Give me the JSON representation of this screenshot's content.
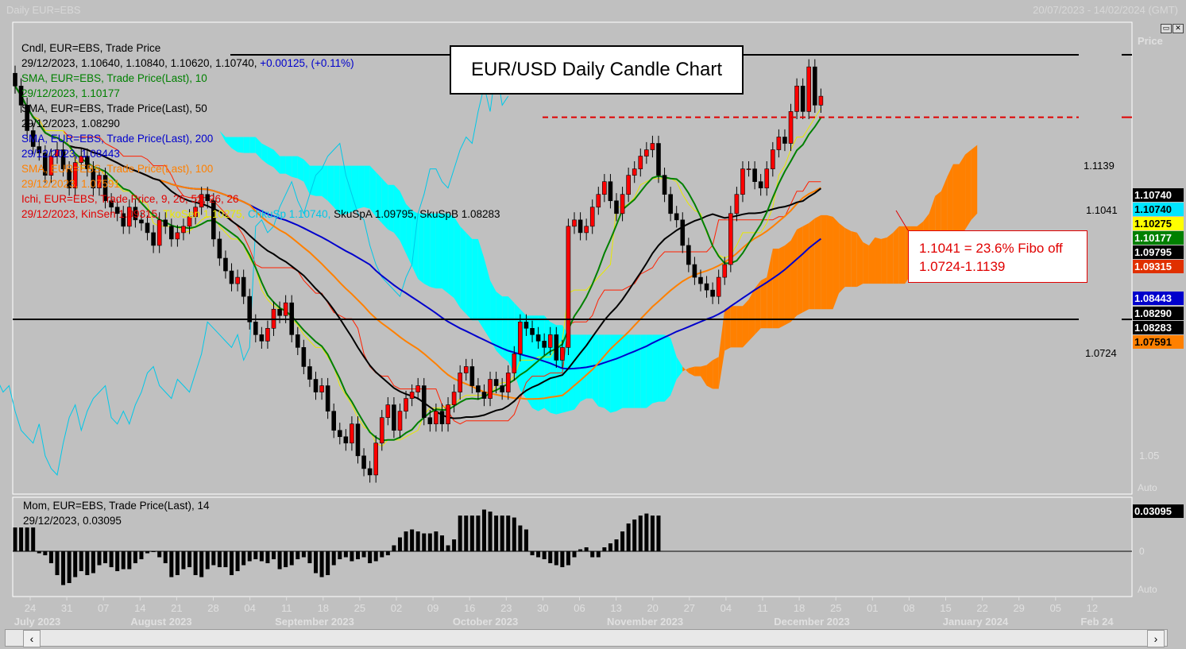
{
  "window": {
    "title": "Daily EUR=EBS",
    "date_range": "20/07/2023 - 14/02/2024 (GMT)",
    "price_axis_label": "Price",
    "auto_label": "Auto",
    "mom_auto_label": "Auto"
  },
  "chart_title": "EUR/USD Daily Candle Chart",
  "legend": [
    {
      "text": "Cndl, EUR=EBS, Trade Price",
      "color": "#000000"
    },
    {
      "text": "29/12/2023, 1.10640, 1.10840, 1.10620, 1.10740, ",
      "extra": "+0.00125, (+0.11%)",
      "color": "#000000",
      "extra_color": "#0000cc"
    },
    {
      "text": "SMA, EUR=EBS, Trade Price(Last),  10",
      "color": "#008000"
    },
    {
      "text": "29/12/2023, 1.10177",
      "color": "#008000"
    },
    {
      "text": "SMA, EUR=EBS, Trade Price(Last),  50",
      "color": "#000000"
    },
    {
      "text": "29/12/2023, 1.08290",
      "color": "#000000"
    },
    {
      "text": "SMA, EUR=EBS, Trade Price(Last),  200",
      "color": "#0000cc"
    },
    {
      "text": "29/12/2023, 1.08443",
      "color": "#0000cc"
    },
    {
      "text": "SMA, EUR=EBS, Trade Price(Last),  100",
      "color": "#ff8000"
    },
    {
      "text": "29/12/2023, 1.07591",
      "color": "#ff8000"
    },
    {
      "text": "Ichi, EUR=EBS, Trade Price,  9, 26, 52, 26, 26",
      "color": "#e00000"
    }
  ],
  "ichi_values": {
    "prefix": "29/12/2023, ",
    "kinsen": "KinSen 1.09315, ",
    "tkosen": "TkoSen 1.10275, ",
    "chkusp": "ChkuSp 1.10740, ",
    "skuspa": "SkuSpA 1.09795, ",
    "skuspb": "SkuSpB 1.08283"
  },
  "fibo_note": {
    "line1": "1.1041 = 23.6% Fibo off",
    "line2": "1.0724-1.1139"
  },
  "hlines": [
    {
      "label": "1.1139",
      "value": 1.1139,
      "style": "solid",
      "color": "#000000"
    },
    {
      "label": "1.1041",
      "value": 1.1041,
      "style": "dashed",
      "color": "#e00000"
    },
    {
      "label": "1.0724",
      "value": 1.0724,
      "style": "solid",
      "color": "#000000"
    }
  ],
  "price_tags": [
    {
      "text": "1.10740",
      "bg": "#000000",
      "fg": "#ffffff"
    },
    {
      "text": "1.10740",
      "bg": "#00e5ff",
      "fg": "#000000"
    },
    {
      "text": "1.10275",
      "bg": "#ffff00",
      "fg": "#000000"
    },
    {
      "text": "1.10177",
      "bg": "#008000",
      "fg": "#ffffff"
    },
    {
      "text": "1.09795",
      "bg": "#000000",
      "fg": "#ffffff"
    },
    {
      "text": "1.09315",
      "bg": "#e03000",
      "fg": "#ffffff"
    },
    {
      "text": "1.08443",
      "bg": "#0000cc",
      "fg": "#ffffff"
    },
    {
      "text": "1.08290",
      "bg": "#000000",
      "fg": "#ffffff"
    },
    {
      "text": "1.08283",
      "bg": "#000000",
      "fg": "#ffffff"
    },
    {
      "text": "1.07591",
      "bg": "#ff8000",
      "fg": "#000000"
    }
  ],
  "axis_tick_105": "1.05",
  "momentum": {
    "legend1": "Mom, EUR=EBS, Trade Price(Last),  14",
    "legend2": "29/12/2023, 0.03095",
    "last_tag": "0.03095",
    "zero_label": "0"
  },
  "chart_data": {
    "type": "candlestick",
    "title": "EUR/USD Daily Candle Chart",
    "ylim": [
      1.045,
      1.119
    ],
    "x_day_ticks": [
      "24",
      "31",
      "07",
      "14",
      "21",
      "28",
      "04",
      "11",
      "18",
      "25",
      "02",
      "09",
      "16",
      "23",
      "30",
      "06",
      "13",
      "20",
      "27",
      "04",
      "11",
      "18",
      "25",
      "01",
      "08",
      "15",
      "22",
      "29",
      "05",
      "12"
    ],
    "month_labels": [
      "July 2023",
      "August 2023",
      "September 2023",
      "October 2023",
      "November 2023",
      "December 2023",
      "January 2024",
      "Feb 24"
    ],
    "closes": [
      1.109,
      1.106,
      1.102,
      1.0995,
      1.0985,
      1.095,
      1.098,
      1.099,
      1.096,
      1.093,
      1.097,
      1.098,
      1.096,
      1.093,
      1.095,
      1.091,
      1.09,
      1.089,
      1.087,
      1.09,
      1.088,
      1.0875,
      1.086,
      1.084,
      1.088,
      1.087,
      1.085,
      1.086,
      1.087,
      1.0885,
      1.09,
      1.092,
      1.091,
      1.085,
      1.082,
      1.08,
      1.078,
      1.079,
      1.076,
      1.072,
      1.07,
      1.069,
      1.071,
      1.074,
      1.073,
      1.075,
      1.07,
      1.068,
      1.065,
      1.063,
      1.061,
      1.062,
      1.058,
      1.055,
      1.054,
      1.053,
      1.056,
      1.051,
      1.049,
      1.048,
      1.053,
      1.057,
      1.059,
      1.055,
      1.058,
      1.06,
      1.061,
      1.062,
      1.057,
      1.056,
      1.058,
      1.056,
      1.059,
      1.061,
      1.064,
      1.065,
      1.062,
      1.061,
      1.06,
      1.063,
      1.062,
      1.061,
      1.064,
      1.067,
      1.072,
      1.071,
      1.07,
      1.069,
      1.068,
      1.07,
      1.066,
      1.068,
      1.087,
      1.088,
      1.086,
      1.087,
      1.09,
      1.092,
      1.094,
      1.091,
      1.089,
      1.092,
      1.095,
      1.096,
      1.098,
      1.099,
      1.1,
      1.095,
      1.092,
      1.089,
      1.088,
      1.084,
      1.081,
      1.079,
      1.078,
      1.077,
      1.076,
      1.079,
      1.081,
      1.089,
      1.092,
      1.096,
      1.096,
      1.094,
      1.093,
      1.096,
      1.099,
      1.101,
      1.1,
      1.105,
      1.109,
      1.105,
      1.112,
      1.106,
      1.1074
    ],
    "momentum": [
      0.012,
      0.012,
      0.012,
      0.012,
      -0.001,
      -0.002,
      -0.006,
      -0.012,
      -0.017,
      -0.016,
      -0.013,
      -0.01,
      -0.012,
      -0.011,
      -0.007,
      -0.006,
      -0.008,
      -0.01,
      -0.009,
      -0.009,
      -0.006,
      -0.004,
      -0.001,
      0.0,
      -0.003,
      -0.006,
      -0.013,
      -0.012,
      -0.009,
      -0.008,
      -0.012,
      -0.013,
      -0.009,
      -0.007,
      -0.008,
      -0.008,
      -0.012,
      -0.01,
      -0.007,
      -0.005,
      -0.004,
      -0.005,
      -0.006,
      -0.004,
      -0.009,
      -0.008,
      -0.007,
      -0.004,
      -0.003,
      -0.006,
      -0.011,
      -0.013,
      -0.012,
      -0.007,
      -0.004,
      -0.003,
      -0.005,
      -0.004,
      -0.003,
      -0.006,
      -0.005,
      -0.003,
      -0.002,
      0.003,
      0.007,
      0.01,
      0.011,
      0.01,
      0.009,
      0.009,
      0.01,
      0.008,
      0.003,
      0.006,
      0.018,
      0.018,
      0.018,
      0.018,
      0.021,
      0.02,
      0.018,
      0.018,
      0.018,
      0.017,
      0.013,
      0.011,
      -0.002,
      -0.003,
      -0.004,
      -0.006,
      -0.007,
      -0.008,
      -0.007,
      -0.003,
      0.001,
      0.002,
      -0.003,
      -0.003,
      0.002,
      0.004,
      0.006,
      0.01,
      0.014,
      0.016,
      0.018,
      0.019,
      0.018,
      0.018
    ]
  }
}
